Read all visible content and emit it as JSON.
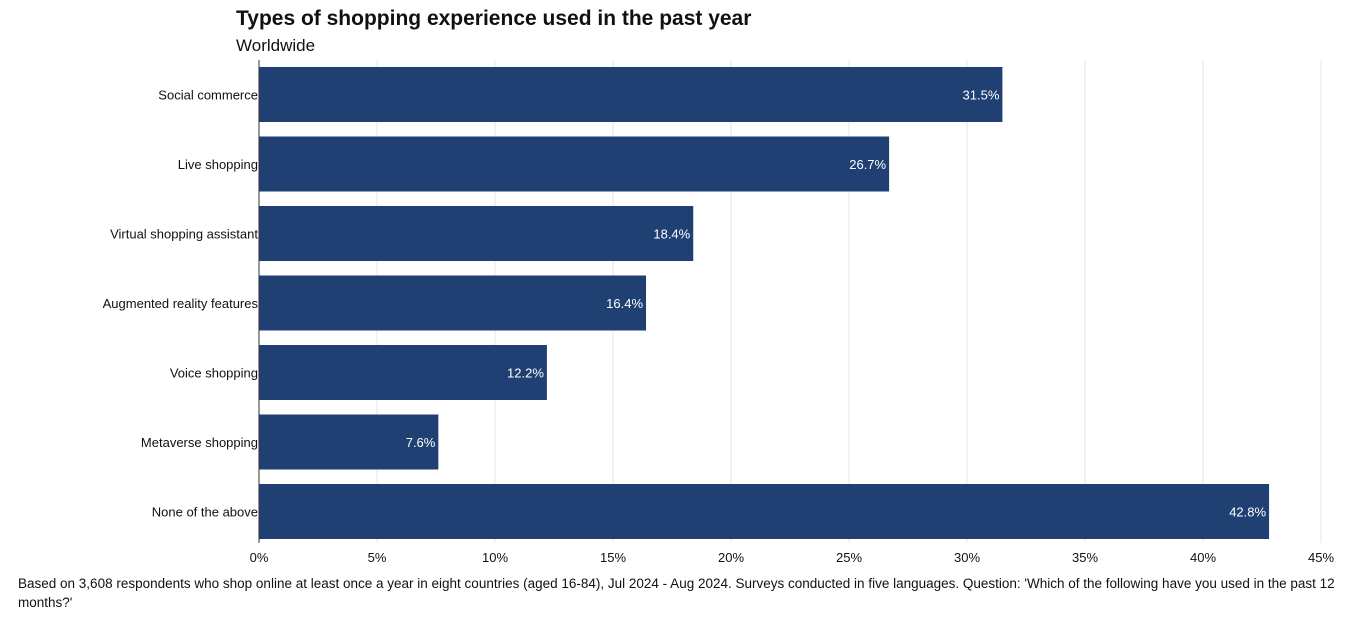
{
  "title": "Types of shopping experience used in the past year",
  "subtitle": "Worldwide",
  "footnote": "Based on 3,608 respondents who shop online at least once a year in eight countries (aged 16-84), Jul 2024 - Aug 2024. Surveys conducted in five languages. Question: 'Which of the following have you used in the past 12 months?'",
  "colors": {
    "bar": "#203f73",
    "grid": "#e6e6e6",
    "axis": "#333333",
    "label_inside": "#ffffff"
  },
  "chart_data": {
    "type": "bar",
    "orientation": "horizontal",
    "title": "Types of shopping experience used in the past year",
    "subtitle": "Worldwide",
    "xlabel": "",
    "ylabel": "",
    "xlim": [
      0,
      45
    ],
    "xticks": [
      0,
      5,
      10,
      15,
      20,
      25,
      30,
      35,
      40,
      45
    ],
    "xtick_labels": [
      "0%",
      "5%",
      "10%",
      "15%",
      "20%",
      "25%",
      "30%",
      "35%",
      "40%",
      "45%"
    ],
    "grid": true,
    "categories": [
      "Social commerce",
      "Live shopping",
      "Virtual shopping assistant",
      "Augmented reality features",
      "Voice shopping",
      "Metaverse shopping",
      "None of the above"
    ],
    "values": [
      31.5,
      26.7,
      18.4,
      16.4,
      12.2,
      7.6,
      42.8
    ],
    "value_labels": [
      "31.5%",
      "26.7%",
      "18.4%",
      "16.4%",
      "12.2%",
      "7.6%",
      "42.8%"
    ]
  }
}
